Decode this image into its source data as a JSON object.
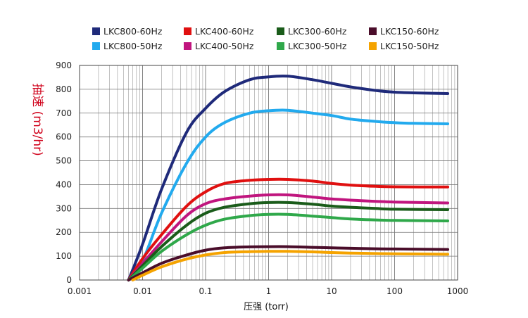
{
  "chart_data": {
    "type": "line",
    "title": "",
    "xlabel": "压强 (torr)",
    "ylabel": "抽速 (m3/hr)",
    "x_scale": "log",
    "xlim": [
      0.001,
      1000
    ],
    "ylim": [
      0,
      900
    ],
    "x_tick_labels": [
      "0.001",
      "0.01",
      "0.1",
      "1",
      "10",
      "100",
      "1000"
    ],
    "y_tick_labels": [
      "0",
      "100",
      "200",
      "300",
      "400",
      "500",
      "600",
      "700",
      "800",
      "900"
    ],
    "grid": true,
    "legend_position": "top",
    "series": [
      {
        "name": "LKC800-60Hz",
        "color": "#1f2a7a",
        "points": [
          [
            0.006,
            0
          ],
          [
            0.01,
            150
          ],
          [
            0.02,
            380
          ],
          [
            0.05,
            620
          ],
          [
            0.1,
            720
          ],
          [
            0.2,
            790
          ],
          [
            0.5,
            840
          ],
          [
            1,
            852
          ],
          [
            2,
            855
          ],
          [
            5,
            840
          ],
          [
            10,
            825
          ],
          [
            20,
            810
          ],
          [
            50,
            795
          ],
          [
            100,
            788
          ],
          [
            200,
            785
          ],
          [
            700,
            782
          ]
        ]
      },
      {
        "name": "LKC800-50Hz",
        "color": "#22aaee",
        "points": [
          [
            0.006,
            0
          ],
          [
            0.01,
            80
          ],
          [
            0.02,
            280
          ],
          [
            0.05,
            490
          ],
          [
            0.1,
            600
          ],
          [
            0.2,
            660
          ],
          [
            0.5,
            700
          ],
          [
            1,
            710
          ],
          [
            2,
            712
          ],
          [
            5,
            700
          ],
          [
            10,
            690
          ],
          [
            20,
            675
          ],
          [
            50,
            665
          ],
          [
            100,
            660
          ],
          [
            200,
            657
          ],
          [
            700,
            655
          ]
        ]
      },
      {
        "name": "LKC400-60Hz",
        "color": "#e01010",
        "points": [
          [
            0.006,
            0
          ],
          [
            0.01,
            90
          ],
          [
            0.02,
            190
          ],
          [
            0.05,
            310
          ],
          [
            0.1,
            370
          ],
          [
            0.2,
            405
          ],
          [
            0.5,
            418
          ],
          [
            1,
            422
          ],
          [
            2,
            422
          ],
          [
            5,
            415
          ],
          [
            10,
            405
          ],
          [
            20,
            398
          ],
          [
            50,
            393
          ],
          [
            100,
            391
          ],
          [
            700,
            390
          ]
        ]
      },
      {
        "name": "LKC400-50Hz",
        "color": "#c0157e",
        "points": [
          [
            0.006,
            0
          ],
          [
            0.01,
            70
          ],
          [
            0.02,
            160
          ],
          [
            0.05,
            270
          ],
          [
            0.1,
            320
          ],
          [
            0.2,
            340
          ],
          [
            0.5,
            352
          ],
          [
            1,
            357
          ],
          [
            2,
            357
          ],
          [
            5,
            348
          ],
          [
            10,
            340
          ],
          [
            20,
            335
          ],
          [
            50,
            330
          ],
          [
            100,
            327
          ],
          [
            700,
            323
          ]
        ]
      },
      {
        "name": "LKC300-60Hz",
        "color": "#1a5c1a",
        "points": [
          [
            0.006,
            0
          ],
          [
            0.01,
            60
          ],
          [
            0.02,
            140
          ],
          [
            0.05,
            230
          ],
          [
            0.1,
            280
          ],
          [
            0.2,
            305
          ],
          [
            0.5,
            320
          ],
          [
            1,
            325
          ],
          [
            2,
            325
          ],
          [
            5,
            318
          ],
          [
            10,
            310
          ],
          [
            20,
            305
          ],
          [
            50,
            300
          ],
          [
            100,
            297
          ],
          [
            700,
            295
          ]
        ]
      },
      {
        "name": "LKC300-50Hz",
        "color": "#2fa84a",
        "points": [
          [
            0.006,
            0
          ],
          [
            0.01,
            50
          ],
          [
            0.02,
            120
          ],
          [
            0.05,
            190
          ],
          [
            0.1,
            230
          ],
          [
            0.2,
            255
          ],
          [
            0.5,
            270
          ],
          [
            1,
            275
          ],
          [
            2,
            275
          ],
          [
            5,
            268
          ],
          [
            10,
            262
          ],
          [
            20,
            256
          ],
          [
            50,
            252
          ],
          [
            100,
            250
          ],
          [
            700,
            248
          ]
        ]
      },
      {
        "name": "LKC150-60Hz",
        "color": "#4a0d2a",
        "points": [
          [
            0.006,
            0
          ],
          [
            0.01,
            30
          ],
          [
            0.02,
            70
          ],
          [
            0.05,
            105
          ],
          [
            0.1,
            125
          ],
          [
            0.2,
            135
          ],
          [
            0.5,
            139
          ],
          [
            1,
            140
          ],
          [
            2,
            140
          ],
          [
            5,
            137
          ],
          [
            10,
            135
          ],
          [
            20,
            133
          ],
          [
            50,
            131
          ],
          [
            100,
            130
          ],
          [
            700,
            128
          ]
        ]
      },
      {
        "name": "LKC150-50Hz",
        "color": "#f5a300",
        "points": [
          [
            0.007,
            0
          ],
          [
            0.01,
            20
          ],
          [
            0.02,
            55
          ],
          [
            0.05,
            88
          ],
          [
            0.1,
            105
          ],
          [
            0.2,
            115
          ],
          [
            0.5,
            119
          ],
          [
            1,
            120
          ],
          [
            2,
            120
          ],
          [
            5,
            118
          ],
          [
            10,
            115
          ],
          [
            20,
            113
          ],
          [
            50,
            111
          ],
          [
            100,
            110
          ],
          [
            700,
            108
          ]
        ]
      }
    ]
  }
}
